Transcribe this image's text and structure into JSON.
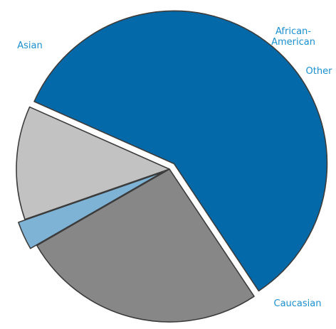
{
  "chart_data": {
    "type": "pie",
    "title": "",
    "slices": [
      {
        "label": "Caucasian",
        "value": 59,
        "color": "#0369a8",
        "exploded": true
      },
      {
        "label": "Asian",
        "value": 26,
        "color": "#878787",
        "exploded": false
      },
      {
        "label": "African-American",
        "value": 3,
        "color": "#7fb3d6",
        "exploded": true
      },
      {
        "label": "Other",
        "value": 12,
        "color": "#c2c2c2",
        "exploded": false
      }
    ],
    "label_color": "#1a8fd0",
    "legend": "none"
  }
}
